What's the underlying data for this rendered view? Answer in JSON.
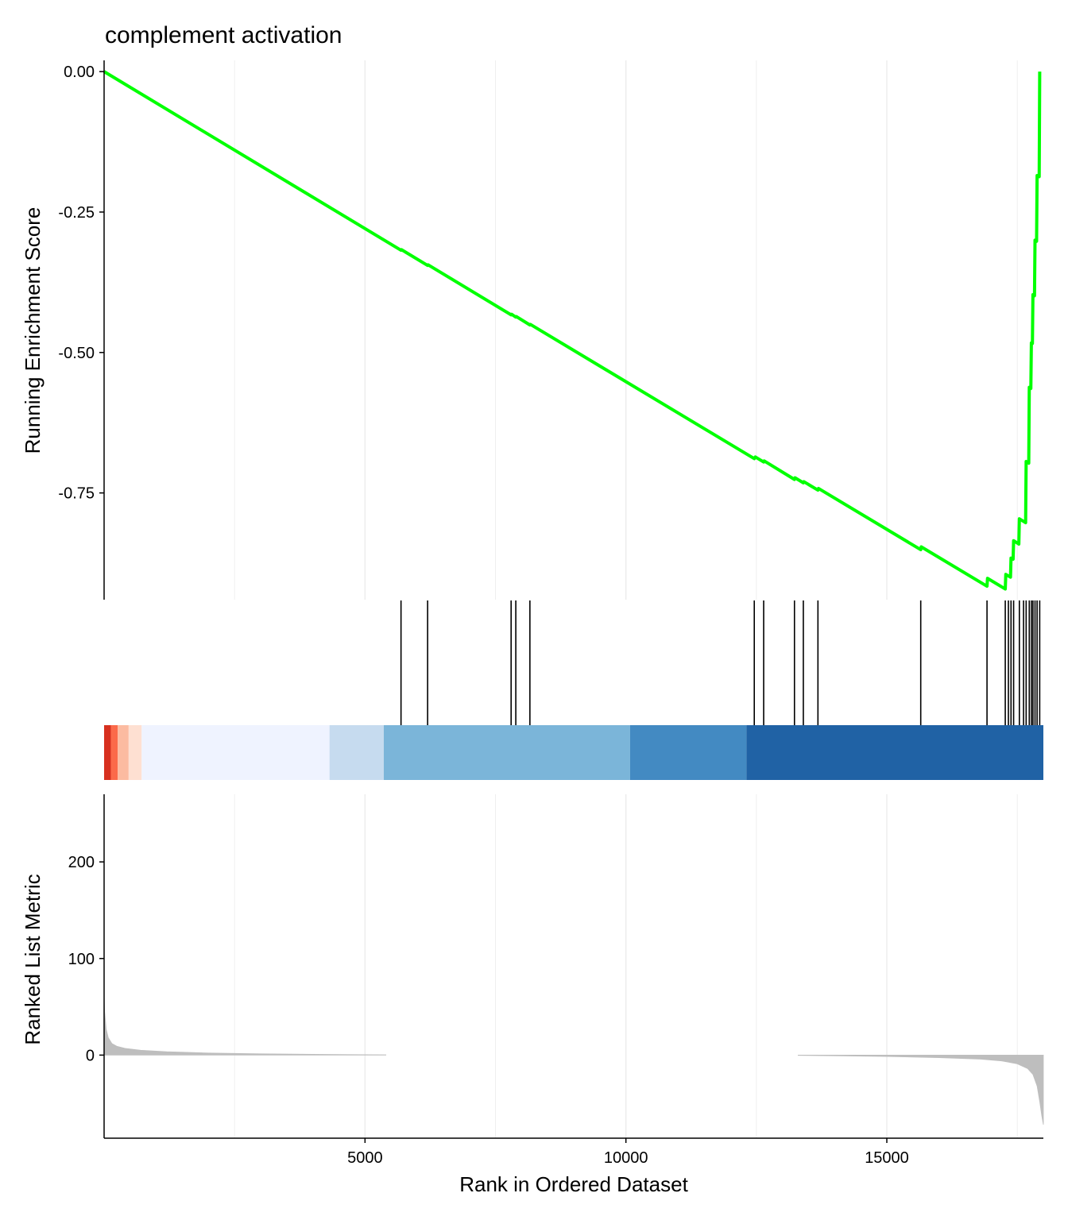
{
  "chart_data": {
    "type": "line",
    "title": "complement activation",
    "xlabel": "Rank in Ordered Dataset",
    "xlim": [
      0,
      18000
    ],
    "x_ticks": [
      5000,
      10000,
      15000
    ],
    "x_tick_labels": [
      "5000",
      "10000",
      "15000"
    ],
    "grid": "vertical-only",
    "colors": {
      "running_score": "#00ff00",
      "hit_lines": "#000000",
      "metric_fill": "#bebebe",
      "grid": "#ebebeb"
    },
    "panels": [
      {
        "id": "running-score",
        "ylabel": "Running Enrichment Score",
        "ylim": [
          -0.94,
          0.02
        ],
        "y_ticks": [
          0.0,
          -0.25,
          -0.5,
          -0.75
        ],
        "y_tick_labels": [
          "0.00",
          "-0.25",
          "-0.50",
          "-0.75"
        ],
        "series": [
          {
            "points": [
              [
                0,
                0.0
              ],
              [
                5690,
                -0.318
              ],
              [
                5700,
                -0.317
              ],
              [
                6200,
                -0.345
              ],
              [
                6210,
                -0.344
              ],
              [
                7800,
                -0.433
              ],
              [
                7810,
                -0.432
              ],
              [
                7890,
                -0.437
              ],
              [
                7900,
                -0.436
              ],
              [
                8160,
                -0.451
              ],
              [
                8170,
                -0.45
              ],
              [
                12460,
                -0.689
              ],
              [
                12480,
                -0.686
              ],
              [
                12640,
                -0.695
              ],
              [
                12650,
                -0.693
              ],
              [
                13230,
                -0.726
              ],
              [
                13240,
                -0.723
              ],
              [
                13400,
                -0.732
              ],
              [
                13410,
                -0.73
              ],
              [
                13680,
                -0.745
              ],
              [
                13690,
                -0.742
              ],
              [
                15650,
                -0.851
              ],
              [
                15660,
                -0.846
              ],
              [
                16920,
                -0.916
              ],
              [
                16930,
                -0.902
              ],
              [
                17270,
                -0.921
              ],
              [
                17280,
                -0.895
              ],
              [
                17370,
                -0.9
              ],
              [
                17380,
                -0.866
              ],
              [
                17420,
                -0.868
              ],
              [
                17430,
                -0.835
              ],
              [
                17530,
                -0.841
              ],
              [
                17540,
                -0.796
              ],
              [
                17660,
                -0.803
              ],
              [
                17670,
                -0.694
              ],
              [
                17720,
                -0.697
              ],
              [
                17730,
                -0.562
              ],
              [
                17760,
                -0.564
              ],
              [
                17770,
                -0.483
              ],
              [
                17790,
                -0.484
              ],
              [
                17800,
                -0.397
              ],
              [
                17830,
                -0.399
              ],
              [
                17840,
                -0.3
              ],
              [
                17870,
                -0.302
              ],
              [
                17880,
                -0.185
              ],
              [
                17920,
                -0.187
              ],
              [
                17930,
                0.0
              ]
            ]
          }
        ]
      },
      {
        "id": "hit-positions",
        "hits": [
          5690,
          6200,
          7800,
          7890,
          8160,
          12460,
          12640,
          13230,
          13400,
          13680,
          15650,
          16920,
          17270,
          17330,
          17380,
          17430,
          17540,
          17620,
          17670,
          17730,
          17770,
          17800,
          17840,
          17880,
          17930
        ],
        "color_bands": [
          {
            "x0": 0,
            "x1": 130,
            "color": "#d7301f"
          },
          {
            "x0": 130,
            "x1": 260,
            "color": "#fb6a4a"
          },
          {
            "x0": 260,
            "x1": 470,
            "color": "#fcbba1"
          },
          {
            "x0": 470,
            "x1": 720,
            "color": "#fee0d2"
          },
          {
            "x0": 720,
            "x1": 4320,
            "color": "#eff3ff"
          },
          {
            "x0": 4320,
            "x1": 5360,
            "color": "#c6dbef"
          },
          {
            "x0": 5360,
            "x1": 10080,
            "color": "#7bb5d9"
          },
          {
            "x0": 10080,
            "x1": 12310,
            "color": "#438ac2"
          },
          {
            "x0": 12310,
            "x1": 18000,
            "color": "#2062a5"
          }
        ]
      },
      {
        "id": "ranked-metric",
        "ylabel": "Ranked List Metric",
        "ylim": [
          -86,
          270
        ],
        "y_ticks": [
          200,
          100,
          0
        ],
        "y_tick_labels": [
          "200",
          "100",
          "0"
        ],
        "positive_area": [
          [
            0,
            62
          ],
          [
            10,
            45
          ],
          [
            40,
            27
          ],
          [
            80,
            18
          ],
          [
            150,
            12
          ],
          [
            250,
            9
          ],
          [
            400,
            7
          ],
          [
            700,
            5
          ],
          [
            1200,
            3.5
          ],
          [
            2000,
            2.2
          ],
          [
            3000,
            1.3
          ],
          [
            4000,
            0.8
          ],
          [
            5000,
            0.4
          ],
          [
            5400,
            0.3
          ]
        ],
        "negative_area": [
          [
            13300,
            -0.3
          ],
          [
            14000,
            -0.7
          ],
          [
            15000,
            -1.4
          ],
          [
            16000,
            -2.6
          ],
          [
            16800,
            -4.2
          ],
          [
            17200,
            -6
          ],
          [
            17500,
            -9
          ],
          [
            17700,
            -14
          ],
          [
            17800,
            -20
          ],
          [
            17880,
            -32
          ],
          [
            17930,
            -48
          ],
          [
            17970,
            -63
          ],
          [
            18000,
            -72
          ]
        ]
      }
    ]
  }
}
